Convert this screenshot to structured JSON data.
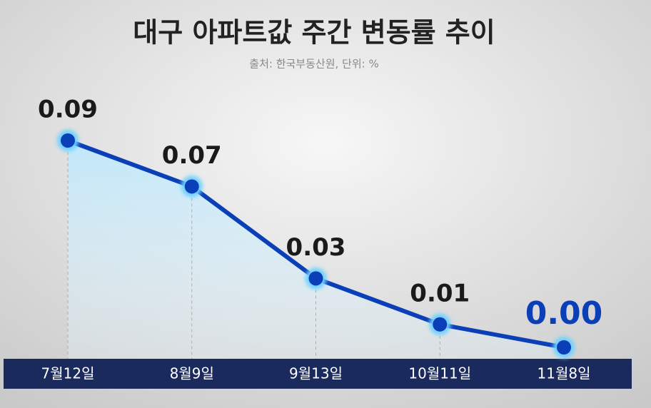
{
  "chart_data": {
    "type": "line",
    "title": "대구 아파트값 주간 변동률 추이",
    "subtitle": "출처: 한국부동산원, 단위: %",
    "categories": [
      "7월12일",
      "8월9일",
      "9월13일",
      "10월11일",
      "11월8일"
    ],
    "values": [
      0.09,
      0.07,
      0.03,
      0.01,
      0.0
    ],
    "value_labels": [
      "0.09",
      "0.07",
      "0.03",
      "0.01",
      "0.00"
    ],
    "color": "#0b3fb8"
  }
}
